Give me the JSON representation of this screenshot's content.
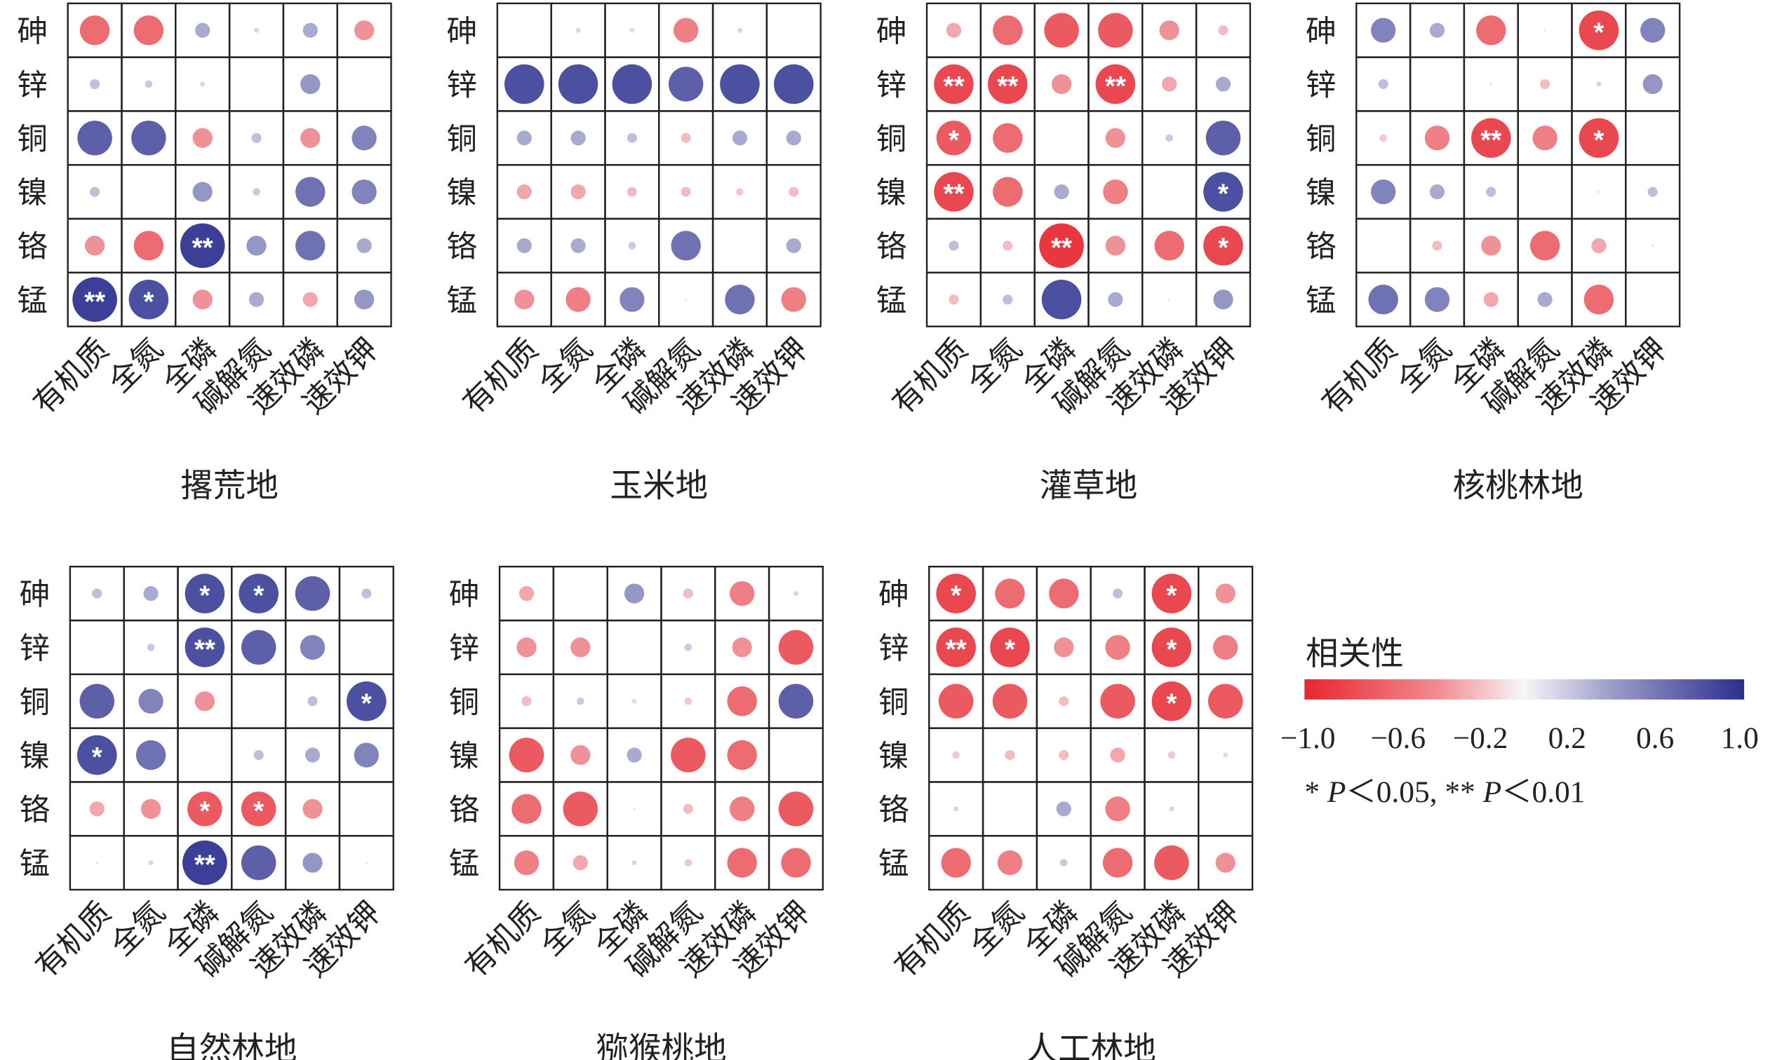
{
  "chart_data": [
    {
      "type": "heatmap",
      "title": "撂荒地",
      "rows": [
        "砷",
        "锌",
        "铜",
        "镍",
        "铬",
        "锰"
      ],
      "columns": [
        "有机质",
        "全氮",
        "全磷",
        "碱解氮",
        "速效磷",
        "速效钾"
      ],
      "values": [
        [
          -0.6,
          -0.6,
          0.3,
          0.1,
          0.3,
          -0.4
        ],
        [
          0.2,
          0.15,
          0.1,
          0,
          0.4,
          0
        ],
        [
          0.7,
          0.7,
          -0.4,
          0.2,
          -0.4,
          0.5
        ],
        [
          0.2,
          0,
          0.4,
          0.15,
          0.6,
          0.5
        ],
        [
          -0.4,
          -0.6,
          0.9,
          0.4,
          0.6,
          0.3
        ],
        [
          0.9,
          0.8,
          -0.4,
          0.3,
          -0.3,
          0.4
        ]
      ],
      "significance": [
        [
          "",
          "",
          "",
          "",
          "",
          ""
        ],
        [
          "",
          "",
          "",
          "",
          "",
          ""
        ],
        [
          "",
          "",
          "",
          "",
          "",
          ""
        ],
        [
          "",
          "",
          "",
          "",
          "",
          ""
        ],
        [
          "",
          "",
          "**",
          "",
          "",
          ""
        ],
        [
          "**",
          "*",
          "",
          "",
          "",
          ""
        ]
      ]
    },
    {
      "type": "heatmap",
      "title": "玉米地",
      "rows": [
        "砷",
        "锌",
        "铜",
        "镍",
        "铬",
        "锰"
      ],
      "columns": [
        "有机质",
        "全氮",
        "全磷",
        "碱解氮",
        "速效磷",
        "速效钾"
      ],
      "values": [
        [
          0,
          0.1,
          -0.1,
          -0.5,
          0.1,
          0
        ],
        [
          0.8,
          0.8,
          0.8,
          0.7,
          0.8,
          0.8
        ],
        [
          0.3,
          0.3,
          0.2,
          -0.2,
          0.3,
          0.3
        ],
        [
          -0.3,
          -0.3,
          -0.2,
          -0.2,
          -0.15,
          -0.2
        ],
        [
          0.3,
          0.3,
          0.15,
          0.6,
          0,
          0.3
        ],
        [
          -0.4,
          -0.5,
          0.5,
          0.05,
          0.6,
          -0.5
        ]
      ],
      "significance": [
        [
          "",
          "",
          "",
          "",
          "",
          ""
        ],
        [
          "",
          "",
          "",
          "",
          "",
          ""
        ],
        [
          "",
          "",
          "",
          "",
          "",
          ""
        ],
        [
          "",
          "",
          "",
          "",
          "",
          ""
        ],
        [
          "",
          "",
          "",
          "",
          "",
          ""
        ],
        [
          "",
          "",
          "",
          "",
          "",
          ""
        ]
      ]
    },
    {
      "type": "heatmap",
      "title": "灌草地",
      "rows": [
        "砷",
        "锌",
        "铜",
        "镍",
        "铬",
        "锰"
      ],
      "columns": [
        "有机质",
        "全氮",
        "全磷",
        "碱解氮",
        "速效磷",
        "速效钾"
      ],
      "values": [
        [
          -0.3,
          -0.6,
          -0.7,
          -0.7,
          -0.4,
          -0.2
        ],
        [
          -0.8,
          -0.8,
          -0.4,
          -0.8,
          -0.3,
          0.3
        ],
        [
          -0.7,
          -0.6,
          0,
          -0.4,
          0.15,
          0.7
        ],
        [
          -0.8,
          -0.6,
          0.3,
          -0.5,
          0,
          0.8
        ],
        [
          0.2,
          -0.2,
          -0.9,
          -0.4,
          -0.6,
          -0.8
        ],
        [
          -0.2,
          0.2,
          0.8,
          0.3,
          0.05,
          0.4
        ]
      ],
      "significance": [
        [
          "",
          "",
          "",
          "",
          "",
          ""
        ],
        [
          "**",
          "**",
          "",
          "**",
          "",
          ""
        ],
        [
          "*",
          "",
          "",
          "",
          "",
          ""
        ],
        [
          "**",
          "",
          "",
          "",
          "",
          "*"
        ],
        [
          "",
          "",
          "**",
          "",
          "",
          "*"
        ],
        [
          "",
          "",
          "",
          "",
          "",
          ""
        ]
      ]
    },
    {
      "type": "heatmap",
      "title": "核桃林地",
      "rows": [
        "砷",
        "锌",
        "铜",
        "镍",
        "铬",
        "锰"
      ],
      "columns": [
        "有机质",
        "全氮",
        "全磷",
        "碱解氮",
        "速效磷",
        "速效钾"
      ],
      "values": [
        [
          0.5,
          0.3,
          -0.6,
          0.05,
          -0.8,
          0.5
        ],
        [
          0.2,
          0,
          0.05,
          -0.2,
          0.1,
          0.4
        ],
        [
          -0.15,
          -0.5,
          -0.8,
          -0.5,
          -0.8,
          0
        ],
        [
          0.5,
          0.3,
          0.2,
          0,
          0.05,
          0.2
        ],
        [
          0,
          -0.2,
          -0.4,
          -0.6,
          -0.3,
          0.05
        ],
        [
          0.6,
          0.5,
          -0.3,
          0.3,
          -0.6,
          0
        ]
      ],
      "significance": [
        [
          "",
          "",
          "",
          "",
          "*",
          ""
        ],
        [
          "",
          "",
          "",
          "",
          "",
          ""
        ],
        [
          "",
          "",
          "**",
          "",
          "*",
          ""
        ],
        [
          "",
          "",
          "",
          "",
          "",
          ""
        ],
        [
          "",
          "",
          "",
          "",
          "",
          ""
        ],
        [
          "",
          "",
          "",
          "",
          "",
          ""
        ]
      ]
    },
    {
      "type": "heatmap",
      "title": "自然林地",
      "rows": [
        "砷",
        "锌",
        "铜",
        "镍",
        "铬",
        "锰"
      ],
      "columns": [
        "有机质",
        "全氮",
        "全磷",
        "碱解氮",
        "速效磷",
        "速效钾"
      ],
      "values": [
        [
          0.2,
          0.3,
          0.8,
          0.8,
          0.7,
          0.2
        ],
        [
          0,
          0.15,
          0.8,
          0.7,
          0.5,
          0
        ],
        [
          0.7,
          0.5,
          -0.4,
          0,
          0.2,
          0.8
        ],
        [
          0.8,
          0.6,
          0,
          0.2,
          0.3,
          0.5
        ],
        [
          -0.3,
          -0.4,
          -0.7,
          -0.7,
          -0.4,
          0
        ],
        [
          0.05,
          0.1,
          0.9,
          0.7,
          0.4,
          0.05
        ]
      ],
      "significance": [
        [
          "",
          "",
          "*",
          "*",
          "",
          ""
        ],
        [
          "",
          "",
          "**",
          "",
          "",
          ""
        ],
        [
          "",
          "",
          "",
          "",
          "",
          "*"
        ],
        [
          "*",
          "",
          "",
          "",
          "",
          ""
        ],
        [
          "",
          "",
          "*",
          "*",
          "",
          ""
        ],
        [
          "",
          "",
          "**",
          "",
          "",
          ""
        ]
      ]
    },
    {
      "type": "heatmap",
      "title": "猕猴桃地",
      "rows": [
        "砷",
        "锌",
        "铜",
        "镍",
        "铬",
        "锰"
      ],
      "columns": [
        "有机质",
        "全氮",
        "全磷",
        "碱解氮",
        "速效磷",
        "速效钾"
      ],
      "values": [
        [
          -0.3,
          0,
          0.4,
          -0.2,
          -0.5,
          0.1
        ],
        [
          -0.4,
          -0.4,
          0,
          0.15,
          -0.4,
          -0.7
        ],
        [
          -0.2,
          0.15,
          -0.1,
          -0.15,
          -0.6,
          0.7
        ],
        [
          -0.7,
          -0.4,
          0.3,
          -0.7,
          -0.6,
          0
        ],
        [
          -0.6,
          -0.7,
          -0.05,
          -0.2,
          -0.5,
          -0.7
        ],
        [
          -0.5,
          -0.3,
          0.1,
          -0.15,
          -0.6,
          -0.6
        ]
      ],
      "significance": [
        [
          "",
          "",
          "",
          "",
          "",
          ""
        ],
        [
          "",
          "",
          "",
          "",
          "",
          ""
        ],
        [
          "",
          "",
          "",
          "",
          "",
          ""
        ],
        [
          "",
          "",
          "",
          "",
          "",
          ""
        ],
        [
          "",
          "",
          "",
          "",
          "",
          ""
        ],
        [
          "",
          "",
          "",
          "",
          "",
          ""
        ]
      ]
    },
    {
      "type": "heatmap",
      "title": "人工林地",
      "rows": [
        "砷",
        "锌",
        "铜",
        "镍",
        "铬",
        "锰"
      ],
      "columns": [
        "有机质",
        "全氮",
        "全磷",
        "碱解氮",
        "速效磷",
        "速效钾"
      ],
      "values": [
        [
          -0.8,
          -0.6,
          -0.6,
          0.2,
          -0.8,
          -0.4
        ],
        [
          -0.8,
          -0.8,
          -0.4,
          -0.5,
          -0.8,
          -0.5
        ],
        [
          -0.7,
          -0.7,
          -0.2,
          -0.7,
          -0.8,
          -0.7
        ],
        [
          -0.15,
          -0.2,
          -0.2,
          -0.3,
          -0.15,
          -0.1
        ],
        [
          0.1,
          0,
          0.3,
          -0.5,
          0.1,
          0
        ],
        [
          -0.6,
          -0.5,
          0.15,
          -0.6,
          -0.7,
          -0.4
        ]
      ],
      "significance": [
        [
          "*",
          "",
          "",
          "",
          "*",
          ""
        ],
        [
          "**",
          "*",
          "",
          "",
          "*",
          ""
        ],
        [
          "",
          "",
          "",
          "",
          "*",
          ""
        ],
        [
          "",
          "",
          "",
          "",
          "",
          ""
        ],
        [
          "",
          "",
          "",
          "",
          "",
          ""
        ],
        [
          "",
          "",
          "",
          "",
          "",
          ""
        ]
      ]
    }
  ],
  "legend": {
    "title": "相关性",
    "ticks": [
      "−1.0",
      "−0.6",
      "−0.2",
      "0.2",
      "0.6",
      "1.0"
    ],
    "range": [
      -1,
      1
    ],
    "colors": {
      "negative": "#e8262f",
      "zero": "#ffffff",
      "positive": "#2b2f8f"
    },
    "note_prefix": "* ",
    "p1": "P",
    "note_mid": "＜0.05, ** ",
    "p2": "P",
    "note_suffix": "＜0.01"
  }
}
